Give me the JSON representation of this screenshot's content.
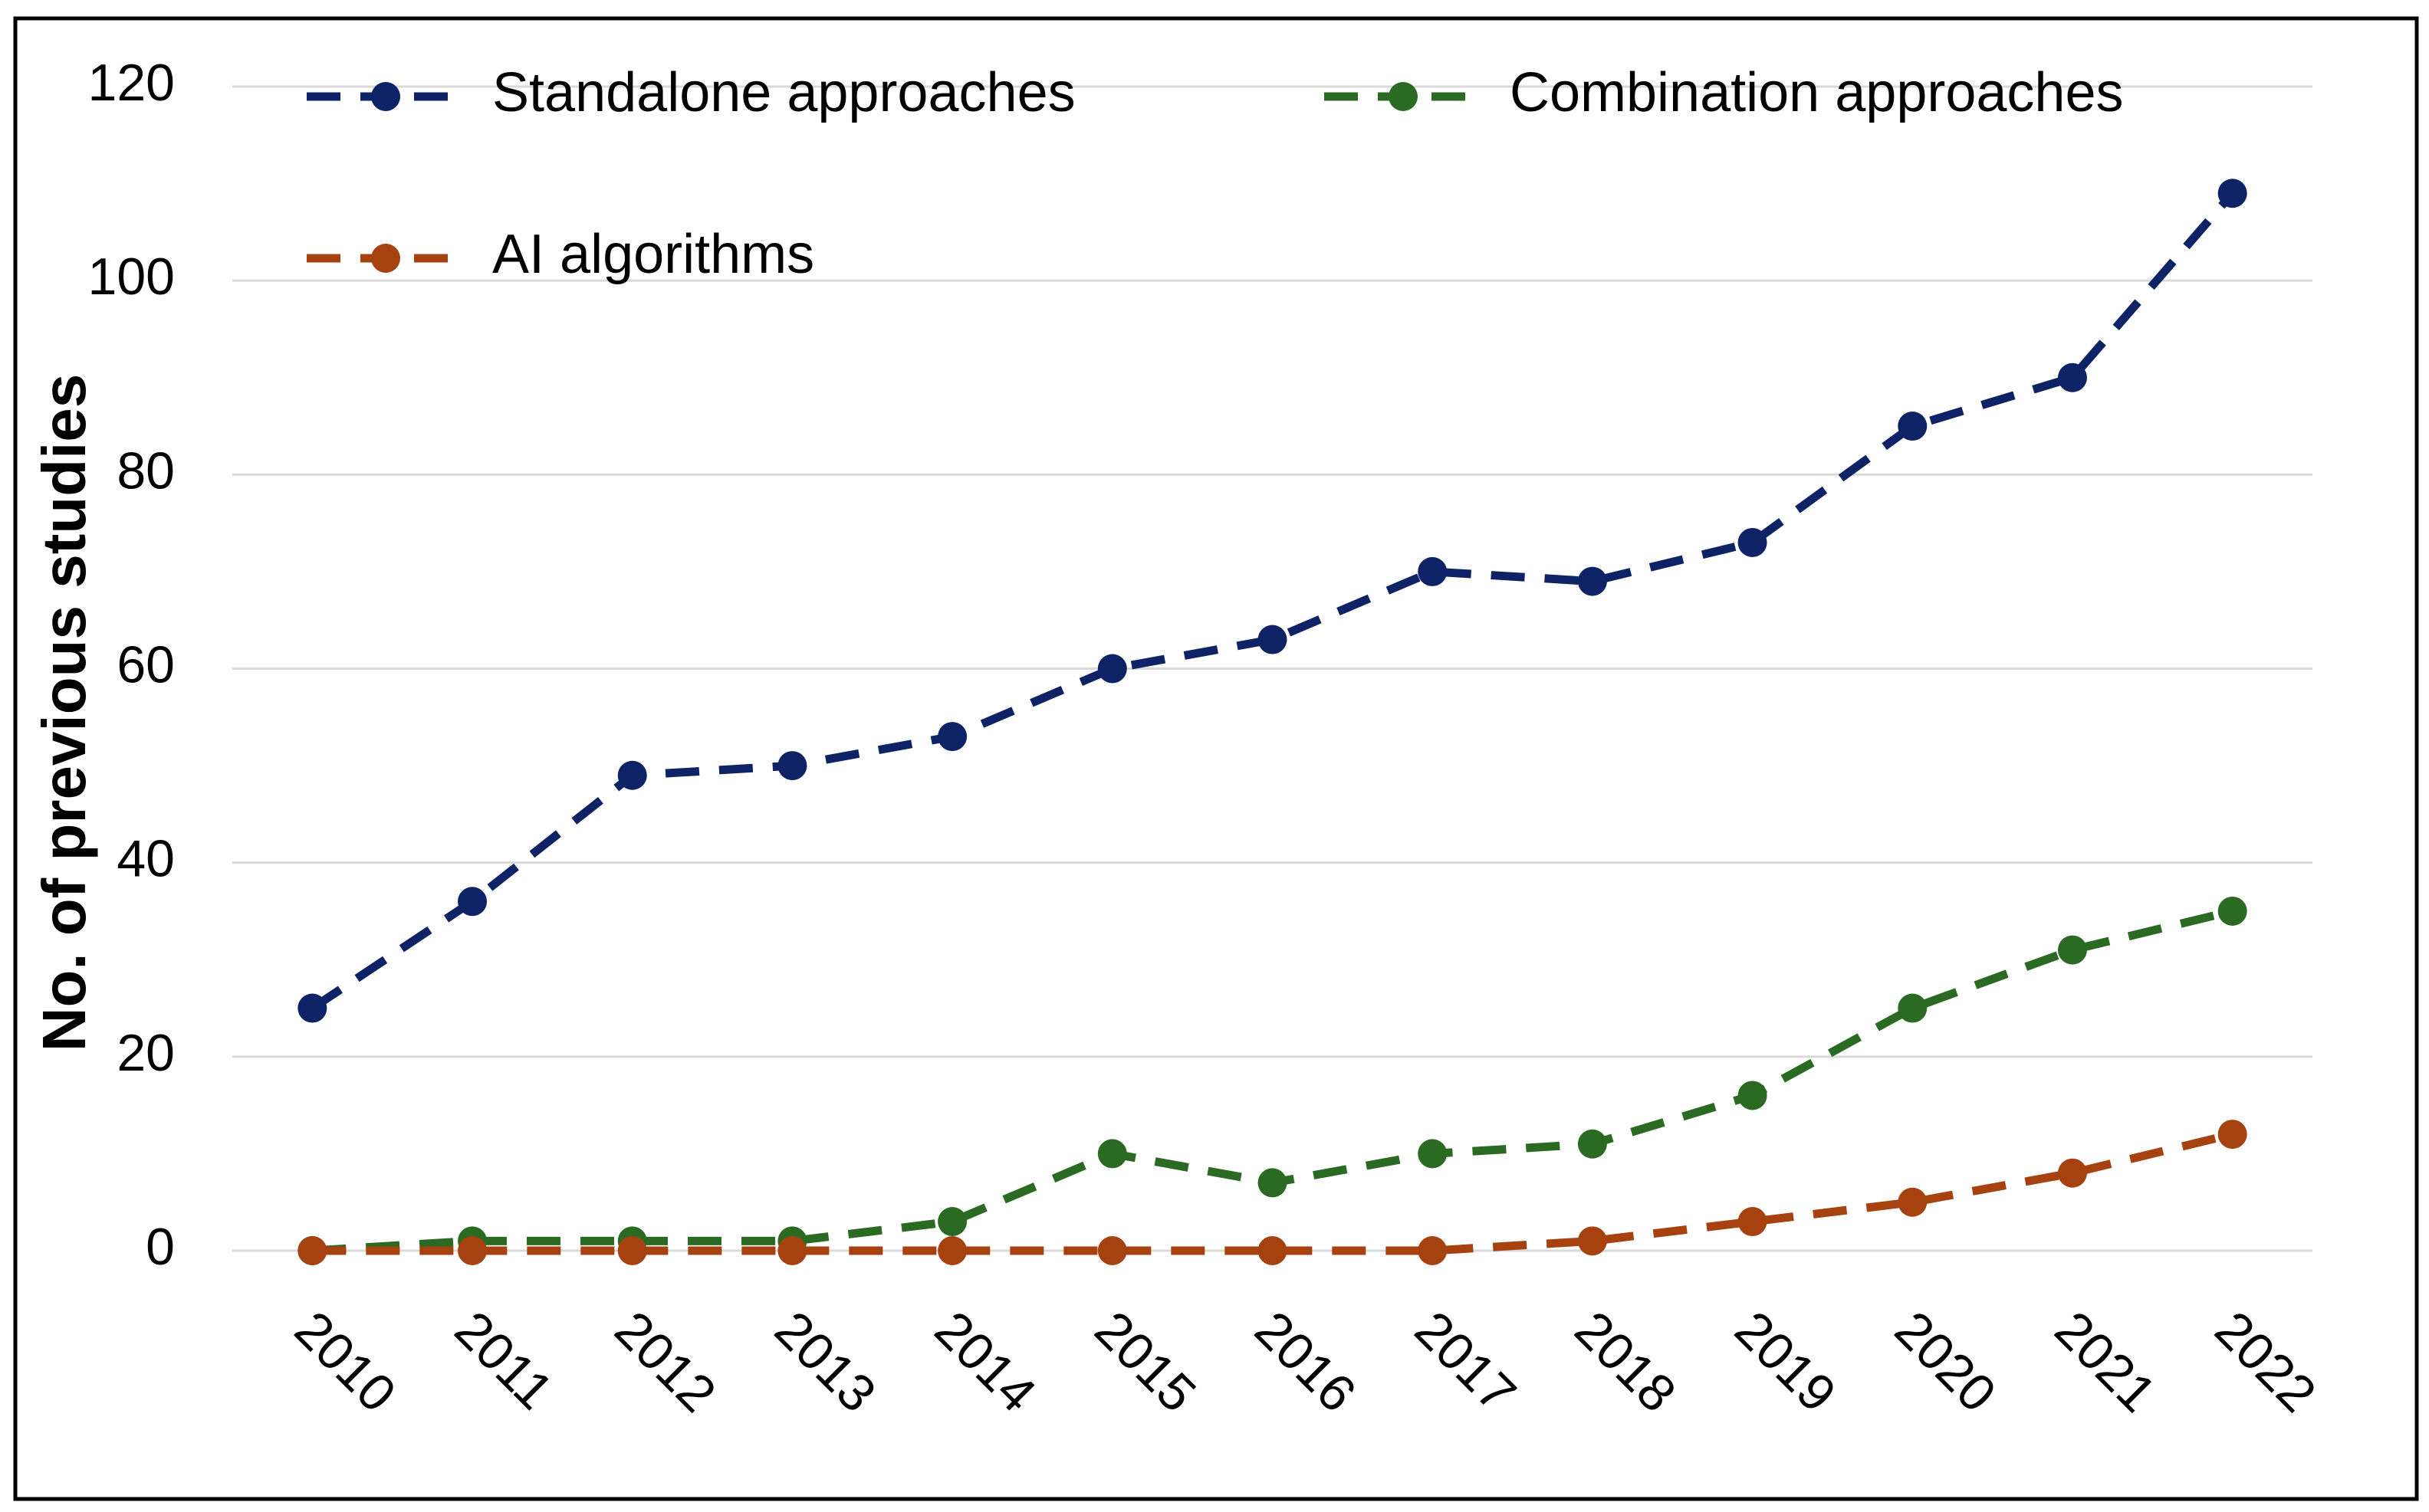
{
  "chart_data": {
    "type": "line",
    "y_label": "No. of previous studies",
    "categories": [
      "2010",
      "2011",
      "2012",
      "2013",
      "2014",
      "2015",
      "2016",
      "2017",
      "2018",
      "2019",
      "2020",
      "2021",
      "2022"
    ],
    "series": [
      {
        "name": "Standalone approaches",
        "color": "#0d2366",
        "values": [
          25,
          36,
          49,
          50,
          53,
          60,
          63,
          70,
          69,
          73,
          85,
          90,
          109
        ]
      },
      {
        "name": "Combination approaches",
        "color": "#2b6a22",
        "values": [
          0,
          1,
          1,
          1,
          3,
          10,
          7,
          10,
          11,
          16,
          25,
          31,
          35
        ]
      },
      {
        "name": "AI algorithms",
        "color": "#a5420f",
        "values": [
          0,
          0,
          0,
          0,
          0,
          0,
          0,
          0,
          1,
          3,
          5,
          8,
          12
        ]
      }
    ],
    "ylim": [
      0,
      120
    ],
    "yticks": [
      0,
      20,
      40,
      60,
      80,
      100,
      120
    ],
    "grid": true
  }
}
